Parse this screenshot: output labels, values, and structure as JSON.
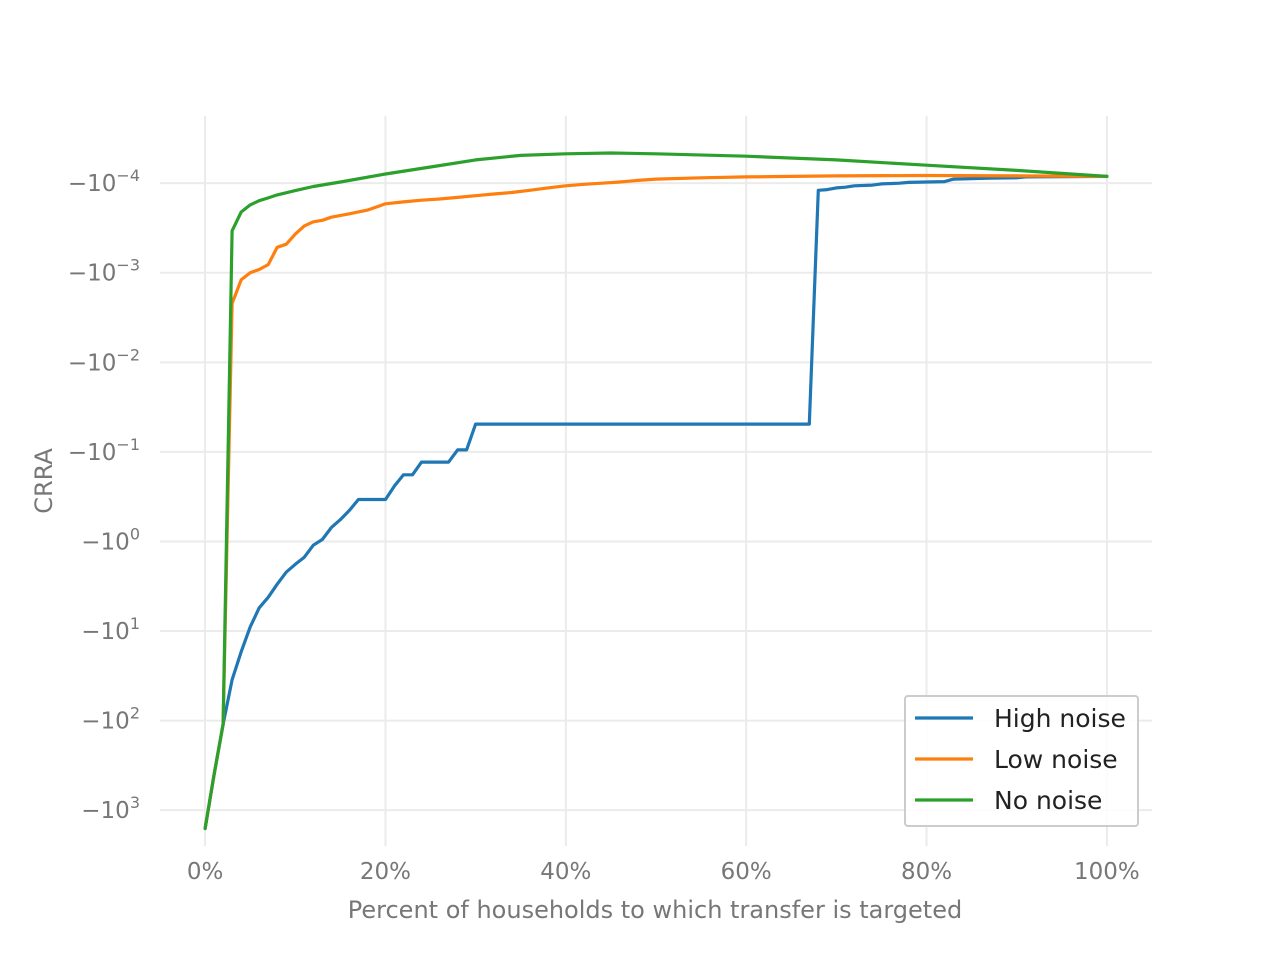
{
  "chart_data": {
    "type": "line",
    "xlabel": "Percent of households to which transfer is targeted",
    "ylabel": "CRRA",
    "xlim": [
      -5,
      105
    ],
    "ylim_exponent": [
      3.4,
      -4.75
    ],
    "y_scale": "symlog-negative",
    "grid": true,
    "legend_position": "bottom-right",
    "x_ticks": [
      0,
      20,
      40,
      60,
      80,
      100
    ],
    "x_tick_labels": [
      "0%",
      "20%",
      "40%",
      "60%",
      "80%",
      "100%"
    ],
    "y_ticks": [
      {
        "base": "−10",
        "exp": "−4",
        "value": -0.0001
      },
      {
        "base": "−10",
        "exp": "−3",
        "value": -0.001
      },
      {
        "base": "−10",
        "exp": "−2",
        "value": -0.01
      },
      {
        "base": "−10",
        "exp": "−1",
        "value": -0.1
      },
      {
        "base": "−10",
        "exp": "0",
        "value": -1
      },
      {
        "base": "−10",
        "exp": "1",
        "value": -10
      },
      {
        "base": "−10",
        "exp": "2",
        "value": -100
      },
      {
        "base": "−10",
        "exp": "3",
        "value": -1000
      }
    ],
    "series": [
      {
        "name": "High noise",
        "color": "#1f77b4",
        "points": [
          [
            0,
            -1600
          ],
          [
            1,
            -400
          ],
          [
            2,
            -110
          ],
          [
            3,
            -35
          ],
          [
            4,
            -17
          ],
          [
            5,
            -9
          ],
          [
            6,
            -5.5
          ],
          [
            7,
            -4.2
          ],
          [
            8,
            -3
          ],
          [
            9,
            -2.2
          ],
          [
            10,
            -1.8
          ],
          [
            11,
            -1.5
          ],
          [
            12,
            -1.1
          ],
          [
            13,
            -0.95
          ],
          [
            14,
            -0.7
          ],
          [
            15,
            -0.57
          ],
          [
            16,
            -0.45
          ],
          [
            17,
            -0.34
          ],
          [
            18,
            -0.34
          ],
          [
            19,
            -0.34
          ],
          [
            20,
            -0.34
          ],
          [
            21,
            -0.24
          ],
          [
            22,
            -0.18
          ],
          [
            23,
            -0.18
          ],
          [
            24,
            -0.13
          ],
          [
            25,
            -0.13
          ],
          [
            26,
            -0.13
          ],
          [
            27,
            -0.13
          ],
          [
            28,
            -0.095
          ],
          [
            29,
            -0.095
          ],
          [
            30,
            -0.049
          ],
          [
            40,
            -0.049
          ],
          [
            50,
            -0.049
          ],
          [
            60,
            -0.049
          ],
          [
            67,
            -0.049
          ],
          [
            68,
            -0.00012
          ],
          [
            69,
            -0.000118
          ],
          [
            70,
            -0.000113
          ],
          [
            71,
            -0.000111
          ],
          [
            72,
            -0.000107
          ],
          [
            74,
            -0.000105
          ],
          [
            75,
            -0.000102
          ],
          [
            77,
            -0.0001
          ],
          [
            78,
            -9.8e-05
          ],
          [
            80,
            -9.7e-05
          ],
          [
            82,
            -9.6e-05
          ],
          [
            83,
            -9e-05
          ],
          [
            85,
            -8.9e-05
          ],
          [
            87,
            -8.8e-05
          ],
          [
            90,
            -8.7e-05
          ],
          [
            91,
            -8.5e-05
          ],
          [
            100,
            -8.4e-05
          ]
        ]
      },
      {
        "name": "Low noise",
        "color": "#ff7f0e",
        "points": [
          [
            0,
            -1600
          ],
          [
            1,
            -400
          ],
          [
            2,
            -110
          ],
          [
            3,
            -0.0022
          ],
          [
            4,
            -0.0012
          ],
          [
            5,
            -0.001
          ],
          [
            6,
            -0.00092
          ],
          [
            7,
            -0.00081
          ],
          [
            8,
            -0.00052
          ],
          [
            9,
            -0.00048
          ],
          [
            10,
            -0.00037
          ],
          [
            11,
            -0.0003
          ],
          [
            12,
            -0.00027
          ],
          [
            13,
            -0.00026
          ],
          [
            14,
            -0.00024
          ],
          [
            16,
            -0.00022
          ],
          [
            18,
            -0.0002
          ],
          [
            20,
            -0.00017
          ],
          [
            22,
            -0.000162
          ],
          [
            24,
            -0.000155
          ],
          [
            26,
            -0.00015
          ],
          [
            28,
            -0.000144
          ],
          [
            30,
            -0.000138
          ],
          [
            32,
            -0.000132
          ],
          [
            34,
            -0.000127
          ],
          [
            36,
            -0.00012
          ],
          [
            38,
            -0.000113
          ],
          [
            40,
            -0.000107
          ],
          [
            42,
            -0.000103
          ],
          [
            44,
            -0.0001
          ],
          [
            46,
            -9.7e-05
          ],
          [
            48,
            -9.3e-05
          ],
          [
            50,
            -9e-05
          ],
          [
            55,
            -8.7e-05
          ],
          [
            60,
            -8.5e-05
          ],
          [
            65,
            -8.4e-05
          ],
          [
            70,
            -8.3e-05
          ],
          [
            80,
            -8.2e-05
          ],
          [
            90,
            -8.3e-05
          ],
          [
            100,
            -8.4e-05
          ]
        ]
      },
      {
        "name": "No noise",
        "color": "#2ca02c",
        "points": [
          [
            0,
            -1600
          ],
          [
            1,
            -400
          ],
          [
            2,
            -110
          ],
          [
            3,
            -0.00034
          ],
          [
            4,
            -0.00021
          ],
          [
            5,
            -0.000175
          ],
          [
            6,
            -0.000157
          ],
          [
            7,
            -0.000146
          ],
          [
            8,
            -0.000135
          ],
          [
            10,
            -0.000121
          ],
          [
            12,
            -0.000109
          ],
          [
            15,
            -9.7e-05
          ],
          [
            20,
            -7.9e-05
          ],
          [
            25,
            -6.6e-05
          ],
          [
            30,
            -5.5e-05
          ],
          [
            35,
            -4.9e-05
          ],
          [
            40,
            -4.7e-05
          ],
          [
            45,
            -4.6e-05
          ],
          [
            50,
            -4.7e-05
          ],
          [
            60,
            -5e-05
          ],
          [
            70,
            -5.5e-05
          ],
          [
            80,
            -6.3e-05
          ],
          [
            90,
            -7.2e-05
          ],
          [
            100,
            -8.4e-05
          ]
        ]
      }
    ]
  }
}
